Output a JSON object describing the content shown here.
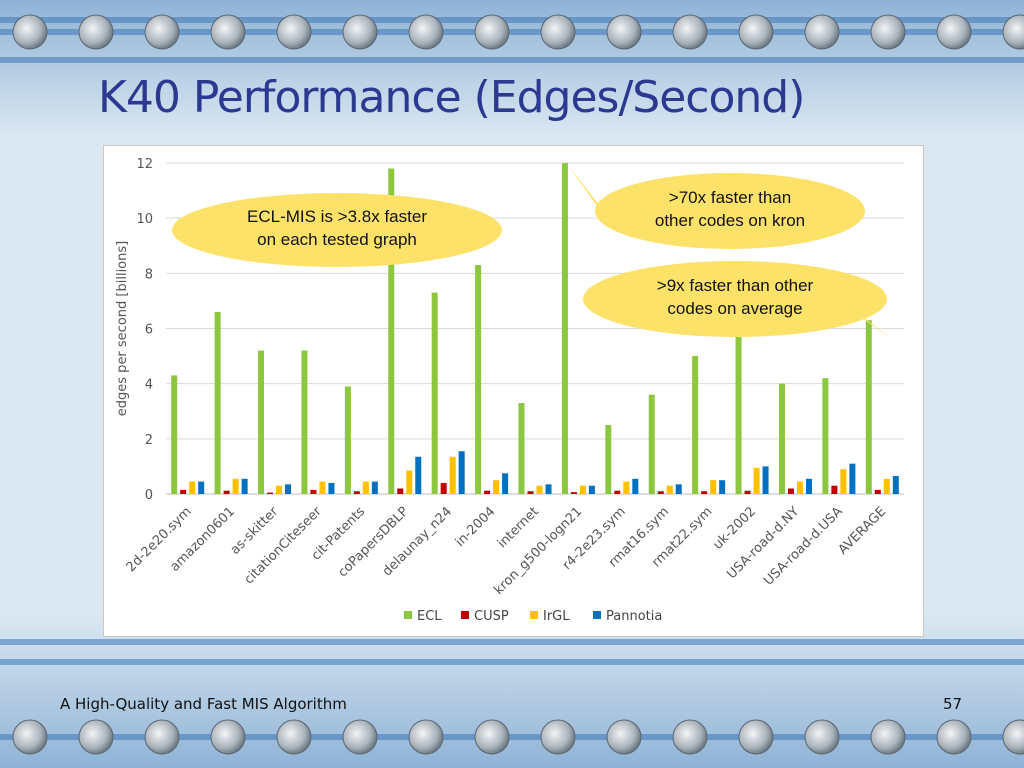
{
  "slide": {
    "title": "K40 Performance (Edges/Second)",
    "footer": "A High-Quality and Fast MIS Algorithm",
    "page_number": "57"
  },
  "colors": {
    "title": "#2b3990",
    "ECL": "#8dc63f",
    "CUSP": "#c00000",
    "IrGL": "#ffc000",
    "Pannotia": "#0070c0",
    "callout": "#fde26a"
  },
  "chart_data": {
    "type": "bar",
    "title": "",
    "xlabel": "",
    "ylabel": "edges per second [billions]",
    "ylim": [
      0,
      12
    ],
    "yticks": [
      0,
      2,
      4,
      6,
      8,
      10,
      12
    ],
    "grid": true,
    "legend_position": "bottom",
    "categories": [
      "2d-2e20.sym",
      "amazon0601",
      "as-skitter",
      "citationCiteseer",
      "cit-Patents",
      "coPapersDBLP",
      "delaunay_n24",
      "in-2004",
      "internet",
      "kron_g500-logn21",
      "r4-2e23.sym",
      "rmat16.sym",
      "rmat22.sym",
      "uk-2002",
      "USA-road-d.NY",
      "USA-road-d.USA",
      "AVERAGE"
    ],
    "series": [
      {
        "name": "ECL",
        "values": [
          4.3,
          6.6,
          5.2,
          5.2,
          3.9,
          11.8,
          7.3,
          8.3,
          3.3,
          12.0,
          2.5,
          3.6,
          5.0,
          5.7,
          4.0,
          4.2,
          6.3
        ]
      },
      {
        "name": "CUSP",
        "values": [
          0.15,
          0.12,
          0.05,
          0.15,
          0.1,
          0.2,
          0.4,
          0.12,
          0.1,
          0.07,
          0.12,
          0.1,
          0.1,
          0.12,
          0.2,
          0.3,
          0.15
        ]
      },
      {
        "name": "IrGL",
        "values": [
          0.45,
          0.55,
          0.3,
          0.45,
          0.45,
          0.85,
          1.35,
          0.5,
          0.3,
          0.3,
          0.45,
          0.3,
          0.5,
          0.95,
          0.45,
          0.9,
          0.55
        ]
      },
      {
        "name": "Pannotia",
        "values": [
          0.45,
          0.55,
          0.35,
          0.4,
          0.45,
          1.35,
          1.55,
          0.75,
          0.35,
          0.3,
          0.55,
          0.35,
          0.5,
          1.0,
          0.55,
          1.1,
          0.65
        ]
      }
    ],
    "annotations": [
      {
        "text": [
          "ECL-MIS is >3.8x faster",
          "on each tested graph"
        ],
        "target_category": "coPapersDBLP"
      },
      {
        "text": [
          ">70x faster than",
          "other codes on kron"
        ],
        "target_category": "kron_g500-logn21"
      },
      {
        "text": [
          ">9x faster than other",
          "codes on average"
        ],
        "target_category": "AVERAGE"
      }
    ]
  }
}
